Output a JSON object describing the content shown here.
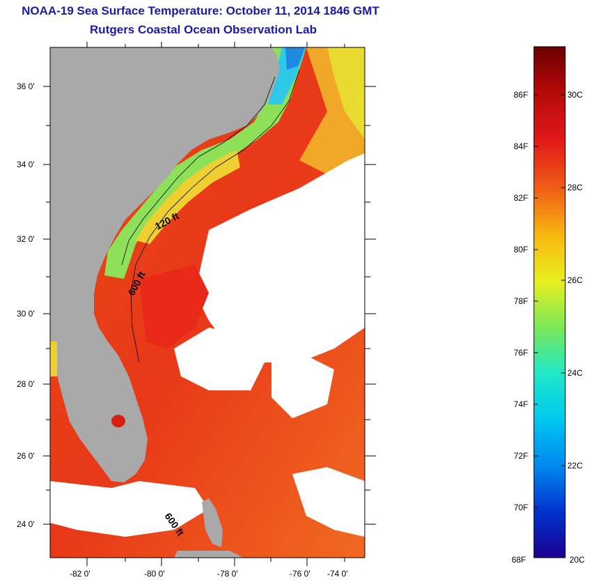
{
  "title_line1": "NOAA-19 Sea Surface Temperature:  October 11, 2014 1846 GMT",
  "title_line2": "Rutgers Coastal Ocean Observation Lab",
  "lat_labels": [
    "36 0'",
    "34 0'",
    "32 0'",
    "30 0'",
    "28 0'",
    "26 0'",
    "24 0'"
  ],
  "lon_labels": [
    "-82 0'",
    "-80 0'",
    "-78 0'",
    "-76 0'",
    "-74 0'"
  ],
  "isobath_labels": [
    "120 ft",
    "600 ft",
    "600 ft"
  ],
  "colorbar": {
    "fahrenheit_labels": [
      "86F",
      "84F",
      "82F",
      "80F",
      "78F",
      "76F",
      "74F",
      "72F",
      "70F",
      "68F"
    ],
    "celsius_labels": [
      "30C",
      "28C",
      "26C",
      "24C",
      "22C",
      "20C"
    ],
    "colors": [
      "#1a0090",
      "#0033cc",
      "#0088ee",
      "#00c8f0",
      "#20e8c8",
      "#7ae858",
      "#e8f020",
      "#f8b810",
      "#f06018",
      "#e01818",
      "#b00808",
      "#6a0000"
    ]
  },
  "colors": {
    "land": "#a9a9a9",
    "title": "#1a1aa8"
  }
}
